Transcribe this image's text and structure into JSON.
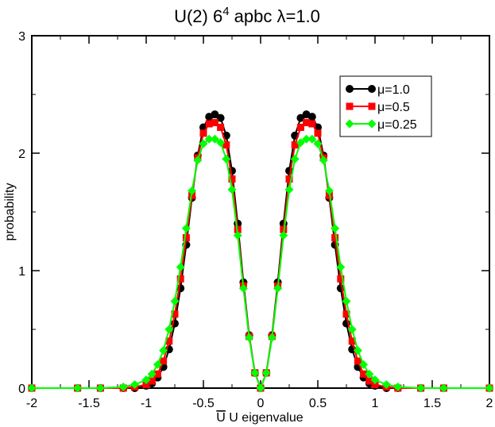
{
  "chart_data": {
    "type": "line",
    "title_main": "U(2)  6",
    "title_sup": "4",
    "title_rest": " apbc λ=1.0",
    "xlabel_bar": "U",
    "xlabel_rest": " U eigenvalue",
    "ylabel": "probability",
    "xlim": [
      -2,
      2
    ],
    "ylim": [
      0,
      3
    ],
    "xticks": [
      -2,
      -1.5,
      -1,
      -0.5,
      0,
      0.5,
      1,
      1.5,
      2
    ],
    "xtick_labels": [
      "-2",
      "-1.5",
      "-1",
      "-0.5",
      "0",
      "0.5",
      "1",
      "1.5",
      "2"
    ],
    "yticks": [
      0,
      1,
      2,
      3
    ],
    "ytick_labels": [
      "0",
      "1",
      "2",
      "3"
    ],
    "legend_position": "top-right",
    "series": [
      {
        "name": "μ=1.0",
        "color": "#000000",
        "marker": "circle",
        "x": [
          -2.0,
          -1.6,
          -1.4,
          -1.2,
          -1.1,
          -1.0,
          -0.95,
          -0.9,
          -0.85,
          -0.8,
          -0.75,
          -0.7,
          -0.65,
          -0.6,
          -0.55,
          -0.5,
          -0.45,
          -0.4,
          -0.35,
          -0.3,
          -0.25,
          -0.2,
          -0.15,
          -0.1,
          -0.05,
          0.0,
          0.05,
          0.1,
          0.15,
          0.2,
          0.25,
          0.3,
          0.35,
          0.4,
          0.45,
          0.5,
          0.55,
          0.6,
          0.65,
          0.7,
          0.75,
          0.8,
          0.85,
          0.9,
          0.95,
          1.0,
          1.1,
          1.2,
          1.4,
          1.6,
          2.0
        ],
        "y": [
          0.0,
          0.0,
          0.0,
          0.0,
          0.0,
          0.02,
          0.04,
          0.09,
          0.18,
          0.33,
          0.55,
          0.85,
          1.22,
          1.62,
          1.98,
          2.22,
          2.31,
          2.33,
          2.3,
          2.15,
          1.85,
          1.4,
          0.9,
          0.45,
          0.13,
          0.0,
          0.13,
          0.45,
          0.9,
          1.4,
          1.85,
          2.15,
          2.3,
          2.33,
          2.31,
          2.22,
          1.98,
          1.62,
          1.22,
          0.85,
          0.55,
          0.33,
          0.18,
          0.09,
          0.04,
          0.02,
          0.0,
          0.0,
          0.0,
          0.0,
          0.0
        ]
      },
      {
        "name": "μ=0.5",
        "color": "#ff0000",
        "marker": "square",
        "x": [
          -2.0,
          -1.6,
          -1.4,
          -1.2,
          -1.1,
          -1.0,
          -0.95,
          -0.9,
          -0.85,
          -0.8,
          -0.75,
          -0.7,
          -0.65,
          -0.6,
          -0.55,
          -0.5,
          -0.45,
          -0.4,
          -0.35,
          -0.3,
          -0.25,
          -0.2,
          -0.15,
          -0.1,
          -0.05,
          0.0,
          0.05,
          0.1,
          0.15,
          0.2,
          0.25,
          0.3,
          0.35,
          0.4,
          0.45,
          0.5,
          0.55,
          0.6,
          0.65,
          0.7,
          0.75,
          0.8,
          0.85,
          0.9,
          0.95,
          1.0,
          1.1,
          1.2,
          1.4,
          1.6,
          2.0
        ],
        "y": [
          0.0,
          0.0,
          0.0,
          0.0,
          0.01,
          0.03,
          0.06,
          0.12,
          0.23,
          0.4,
          0.63,
          0.93,
          1.28,
          1.64,
          1.96,
          2.17,
          2.25,
          2.26,
          2.22,
          2.07,
          1.78,
          1.35,
          0.87,
          0.44,
          0.13,
          0.0,
          0.13,
          0.44,
          0.87,
          1.35,
          1.78,
          2.07,
          2.22,
          2.26,
          2.25,
          2.17,
          1.96,
          1.64,
          1.28,
          0.93,
          0.63,
          0.4,
          0.23,
          0.12,
          0.06,
          0.03,
          0.01,
          0.0,
          0.0,
          0.0,
          0.0
        ]
      },
      {
        "name": "μ=0.25",
        "color": "#00ff00",
        "marker": "diamond",
        "x": [
          -2.0,
          -1.6,
          -1.4,
          -1.2,
          -1.1,
          -1.0,
          -0.95,
          -0.9,
          -0.85,
          -0.8,
          -0.75,
          -0.7,
          -0.65,
          -0.6,
          -0.55,
          -0.5,
          -0.45,
          -0.4,
          -0.35,
          -0.3,
          -0.25,
          -0.2,
          -0.15,
          -0.1,
          -0.05,
          0.0,
          0.05,
          0.1,
          0.15,
          0.2,
          0.25,
          0.3,
          0.35,
          0.4,
          0.45,
          0.5,
          0.55,
          0.6,
          0.65,
          0.7,
          0.75,
          0.8,
          0.85,
          0.9,
          0.95,
          1.0,
          1.1,
          1.2,
          1.4,
          1.6,
          2.0
        ],
        "y": [
          0.0,
          0.0,
          0.0,
          0.01,
          0.03,
          0.07,
          0.12,
          0.2,
          0.32,
          0.5,
          0.74,
          1.03,
          1.36,
          1.68,
          1.94,
          2.08,
          2.12,
          2.12,
          2.09,
          1.95,
          1.69,
          1.3,
          0.85,
          0.43,
          0.13,
          0.0,
          0.13,
          0.43,
          0.85,
          1.3,
          1.69,
          1.95,
          2.09,
          2.12,
          2.12,
          2.08,
          1.94,
          1.68,
          1.36,
          1.03,
          0.74,
          0.5,
          0.32,
          0.2,
          0.12,
          0.07,
          0.03,
          0.01,
          0.0,
          0.0,
          0.0
        ]
      }
    ]
  }
}
